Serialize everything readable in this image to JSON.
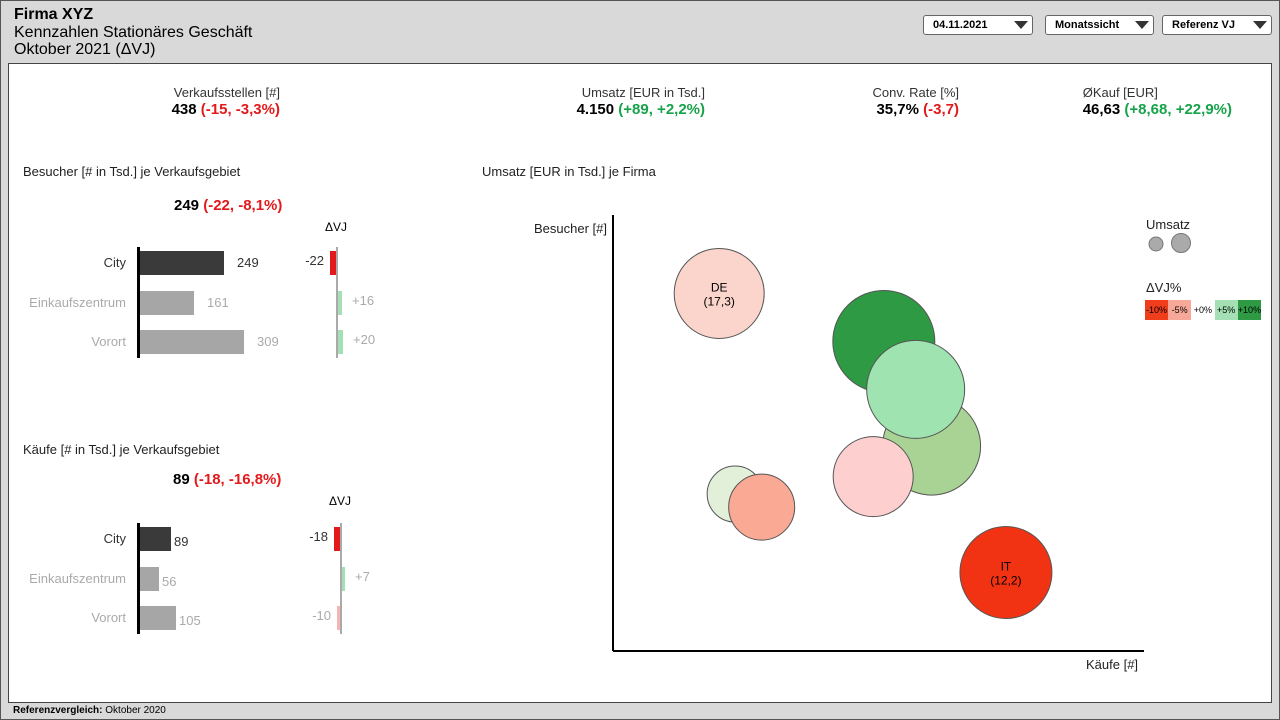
{
  "header": {
    "company": "Firma XYZ",
    "subtitle": "Kennzahlen  Stationäres Geschäft",
    "period": "Oktober 2021 (ΔVJ)"
  },
  "controls": {
    "date": "04.11.2021",
    "view": "Monatssicht",
    "reference": "Referenz VJ"
  },
  "kpis": [
    {
      "label": "Verkaufsstellen [#]",
      "value": "438",
      "delta": "(-15, -3,3%)",
      "trend": "neg"
    },
    {
      "label": "Umsatz [EUR in Tsd.]",
      "value": "4.150",
      "delta": "(+89, +2,2%)",
      "trend": "pos"
    },
    {
      "label": "Conv. Rate [%]",
      "value": "35,7%",
      "delta": "(-3,7)",
      "trend": "neg"
    },
    {
      "label": "ØKauf [EUR]",
      "value": "46,63",
      "delta": "(+8,68, +22,9%)",
      "trend": "pos"
    }
  ],
  "visitors": {
    "title": "Besucher [# in Tsd.] je Verkaufsgebiet",
    "total": "249",
    "total_delta": "(-22, -8,1%)",
    "delta_header": "ΔVJ",
    "rows": [
      {
        "category": "City",
        "value": 249,
        "value_label": "249",
        "delta": -22,
        "delta_label": "-22",
        "highlight": true
      },
      {
        "category": "Einkaufszentrum",
        "value": 161,
        "value_label": "161",
        "delta": 16,
        "delta_label": "+16",
        "highlight": false
      },
      {
        "category": "Vorort",
        "value": 309,
        "value_label": "309",
        "delta": 20,
        "delta_label": "+20",
        "highlight": false
      }
    ]
  },
  "purchases": {
    "title": "Käufe [# in Tsd.] je Verkaufsgebiet",
    "total": "89",
    "total_delta": "(-18, -16,8%)",
    "delta_header": "ΔVJ",
    "rows": [
      {
        "category": "City",
        "value": 89,
        "value_label": "89",
        "delta": -18,
        "delta_label": "-18",
        "highlight": true
      },
      {
        "category": "Einkaufszentrum",
        "value": 56,
        "value_label": "56",
        "delta": 7,
        "delta_label": "+7",
        "highlight": false
      },
      {
        "category": "Vorort",
        "value": 105,
        "value_label": "105",
        "delta": -10,
        "delta_label": "-10",
        "highlight": false
      }
    ]
  },
  "chart_data": {
    "type": "scatter",
    "title": "Umsatz [EUR in Tsd.] je Firma",
    "xlabel": "Käufe [#]",
    "ylabel": "Besucher [#]",
    "xlim": [
      0,
      100
    ],
    "ylim": [
      0,
      100
    ],
    "size_legend_title": "Umsatz",
    "color_legend_title": "ΔVJ%",
    "color_scale": [
      {
        "label": "-10%",
        "color": "#f03d1c"
      },
      {
        "label": "-5%",
        "color": "#f7a899"
      },
      {
        "label": "+0%",
        "color": "#ffffff"
      },
      {
        "label": "+5%",
        "color": "#a4e0b3"
      },
      {
        "label": "+10%",
        "color": "#2e9a44"
      }
    ],
    "points": [
      {
        "x": 20,
        "y": 82,
        "size": 45,
        "color": "#fbd5cc",
        "label": "DE",
        "value_label": "(17,3)"
      },
      {
        "x": 51,
        "y": 71,
        "size": 51,
        "color": "#2e9a44",
        "label": "",
        "value_label": ""
      },
      {
        "x": 60,
        "y": 47,
        "size": 49,
        "color": "#a9d394",
        "label": "",
        "value_label": ""
      },
      {
        "x": 57,
        "y": 60,
        "size": 49,
        "color": "#9fe3b0",
        "label": "",
        "value_label": ""
      },
      {
        "x": 49,
        "y": 40,
        "size": 40,
        "color": "#fdcfcf",
        "label": "",
        "value_label": ""
      },
      {
        "x": 23,
        "y": 36,
        "size": 28,
        "color": "#e2f0da",
        "label": "",
        "value_label": ""
      },
      {
        "x": 28,
        "y": 33,
        "size": 33,
        "color": "#f9a994",
        "label": "",
        "value_label": ""
      },
      {
        "x": 74,
        "y": 18,
        "size": 46,
        "color": "#f23313",
        "label": "IT",
        "value_label": "(12,2)"
      }
    ]
  },
  "footer": {
    "label": "Referenzvergleich:",
    "value": "Oktober 2020"
  }
}
